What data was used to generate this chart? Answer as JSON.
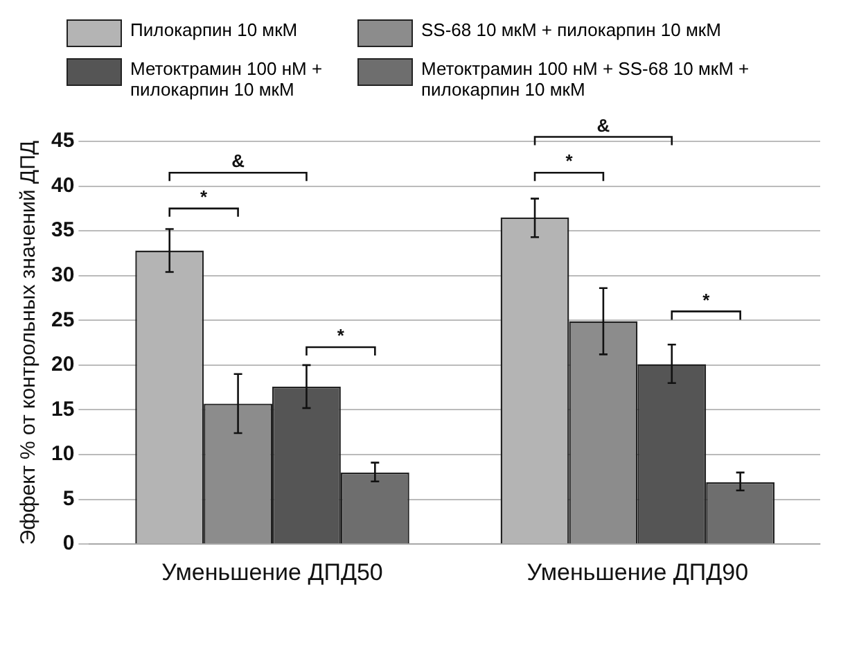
{
  "chart_data": {
    "type": "bar",
    "ylabel": "Эффект % от контрольных значений ДПД",
    "categories": [
      "Уменьшение ДПД50",
      "Уменьшение ДПД90"
    ],
    "series": [
      {
        "name": "Пилокарпин 10 мкМ",
        "color": "#b4b4b4",
        "values": [
          32.8,
          36.5
        ],
        "errors": [
          [
            30.4,
            35.2
          ],
          [
            34.3,
            38.6
          ]
        ]
      },
      {
        "name": "SS-68 10 мкМ + пилокарпин 10 мкМ",
        "color": "#8c8c8c",
        "values": [
          15.7,
          24.9
        ],
        "errors": [
          [
            12.4,
            19.0
          ],
          [
            21.2,
            28.6
          ]
        ]
      },
      {
        "name": "Метоктрамин 100 нМ + пилокарпин 10 мкМ",
        "color": "#555555",
        "values": [
          17.6,
          20.1
        ],
        "errors": [
          [
            15.2,
            20.0
          ],
          [
            18.0,
            22.3
          ]
        ]
      },
      {
        "name": "Метоктрамин 100 нМ + SS-68 10 мкМ + пилокарпин 10 мкМ",
        "color": "#6e6e6e",
        "values": [
          8.0,
          6.9
        ],
        "errors": [
          [
            7.0,
            9.1
          ],
          [
            6.0,
            8.0
          ]
        ]
      }
    ],
    "ylim": [
      0,
      45
    ],
    "yticks": [
      0,
      5,
      10,
      15,
      20,
      25,
      30,
      35,
      40,
      45
    ],
    "grid": "y",
    "legend": "top",
    "annotations": [
      "*",
      "&",
      "*",
      "*",
      "&",
      "*"
    ]
  }
}
